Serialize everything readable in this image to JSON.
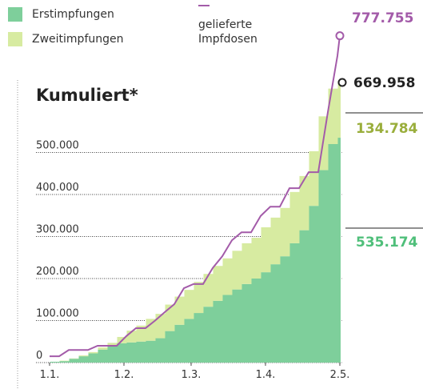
{
  "chart_data": {
    "type": "stacked-bar-line",
    "title": "Kumuliert*",
    "x": [
      0,
      4,
      8,
      12,
      16,
      20,
      24,
      28,
      32,
      36,
      40,
      44,
      48,
      52,
      56,
      60,
      64,
      68,
      72,
      76,
      80,
      84,
      88,
      92,
      96,
      100,
      104,
      108,
      112,
      116,
      120,
      121
    ],
    "series": [
      {
        "name": "Erstimpfungen",
        "color": "#7ecf9b",
        "kind": "bar",
        "values": [
          0,
          2000,
          3500,
          9000,
          15000,
          22000,
          31000,
          40000,
          46000,
          48000,
          50000,
          52000,
          58000,
          75000,
          90000,
          104000,
          118000,
          133000,
          147000,
          161000,
          174000,
          187000,
          200000,
          215000,
          234000,
          253000,
          284000,
          315000,
          373000,
          458000,
          520000,
          535174
        ]
      },
      {
        "name": "Zweitimpfungen",
        "color": "#d7eba1",
        "kind": "bar",
        "values": [
          0,
          0,
          1000,
          1000,
          2000,
          3000,
          5000,
          7000,
          15000,
          28000,
          38000,
          52000,
          58000,
          63000,
          67000,
          69000,
          74000,
          78000,
          83000,
          87000,
          92000,
          97000,
          97000,
          107000,
          111000,
          115000,
          122000,
          129000,
          130000,
          128000,
          132000,
          134784
        ]
      },
      {
        "name": "gelieferte Impfdosen",
        "color": "#a35ba9",
        "kind": "line",
        "values": [
          15000,
          15000,
          30000,
          30000,
          30000,
          40000,
          40000,
          40000,
          63000,
          82000,
          82000,
          100000,
          120000,
          139000,
          177000,
          187000,
          187000,
          225000,
          253000,
          291000,
          310000,
          310000,
          349000,
          371000,
          371000,
          415000,
          415000,
          453000,
          453000,
          596000,
          730000,
          777755
        ]
      }
    ],
    "annotations": [
      {
        "text": "777.755",
        "color": "#a35ba9"
      },
      {
        "text": "669.958",
        "color": "#222222"
      },
      {
        "text": "134.784",
        "color": "#9aae3c"
      },
      {
        "text": "535.174",
        "color": "#4fbf7a"
      }
    ],
    "xlim": [
      -3,
      124
    ],
    "xticks": [
      {
        "value": 0,
        "label": "1.1."
      },
      {
        "value": 31,
        "label": "1.2."
      },
      {
        "value": 59,
        "label": "1.3."
      },
      {
        "value": 90,
        "label": "1.4."
      },
      {
        "value": 121,
        "label": "2.5."
      }
    ],
    "ylim": [
      0,
      800000
    ],
    "yticks": [
      0,
      {
        "value": 100000,
        "label": "100.000"
      },
      {
        "value": 200000,
        "label": "200.000"
      },
      {
        "value": 300000,
        "label": "300.000"
      },
      {
        "value": 400000,
        "label": "400.000"
      },
      {
        "value": 500000,
        "label": "500.000"
      }
    ],
    "grid": true
  }
}
